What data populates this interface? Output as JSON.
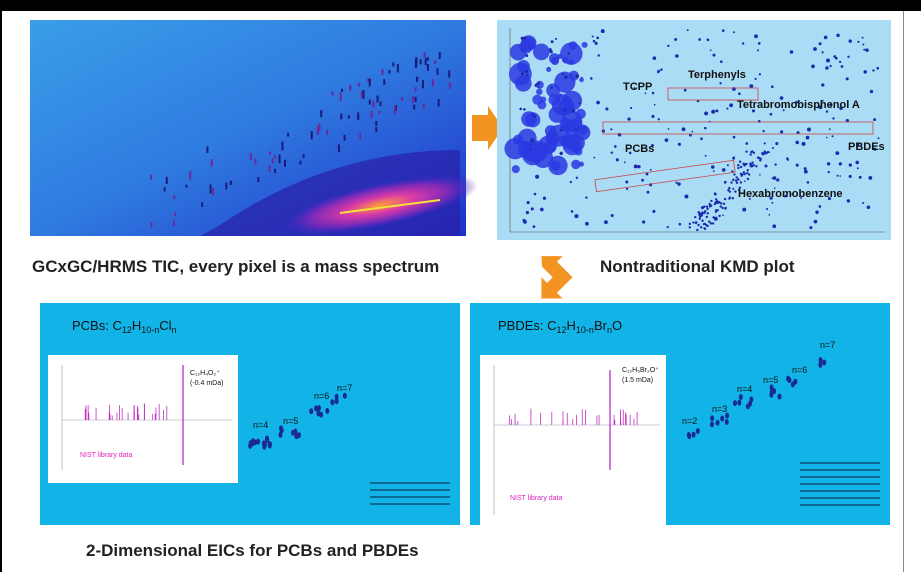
{
  "panels": {
    "tic": {
      "caption": "GCxGC/HRMS TIC, every pixel is a mass spectrum"
    },
    "kmd": {
      "caption": "Nontraditional KMD plot",
      "labels": [
        "TCPP",
        "Terphenyls",
        "Tetrabromobisphenol A",
        "PCBs",
        "PBDEs",
        "Hexabromobenzene"
      ]
    },
    "pcb": {
      "title": [
        {
          "text": "PCBs: C"
        },
        {
          "text": "12",
          "sub": true
        },
        {
          "text": "H"
        },
        {
          "text": "10-n",
          "sub": true
        },
        {
          "text": "Cl"
        },
        {
          "text": "n",
          "sub": true
        }
      ],
      "inset_formula": "C₁₂H₄O₂⁺",
      "inset_error": "(-0.4 mDa)",
      "inset_note": "NIST library data",
      "n_labels": [
        "n=4",
        "n=5",
        "n=6",
        "n=7"
      ]
    },
    "pbde": {
      "title": [
        {
          "text": "PBDEs: C"
        },
        {
          "text": "12",
          "sub": true
        },
        {
          "text": "H"
        },
        {
          "text": "10-n",
          "sub": true
        },
        {
          "text": "Br"
        },
        {
          "text": "n",
          "sub": true
        },
        {
          "text": "O"
        }
      ],
      "inset_formula": "C₁₂H₅Br₂O⁺",
      "inset_error": "(1.5 mDa)",
      "inset_note": "NIST library data",
      "n_labels": [
        "n=2",
        "n=3",
        "n=4",
        "n=5",
        "n=6",
        "n=7"
      ]
    }
  },
  "footer": "2-Dimensional EICs for PCBs and PBDEs"
}
